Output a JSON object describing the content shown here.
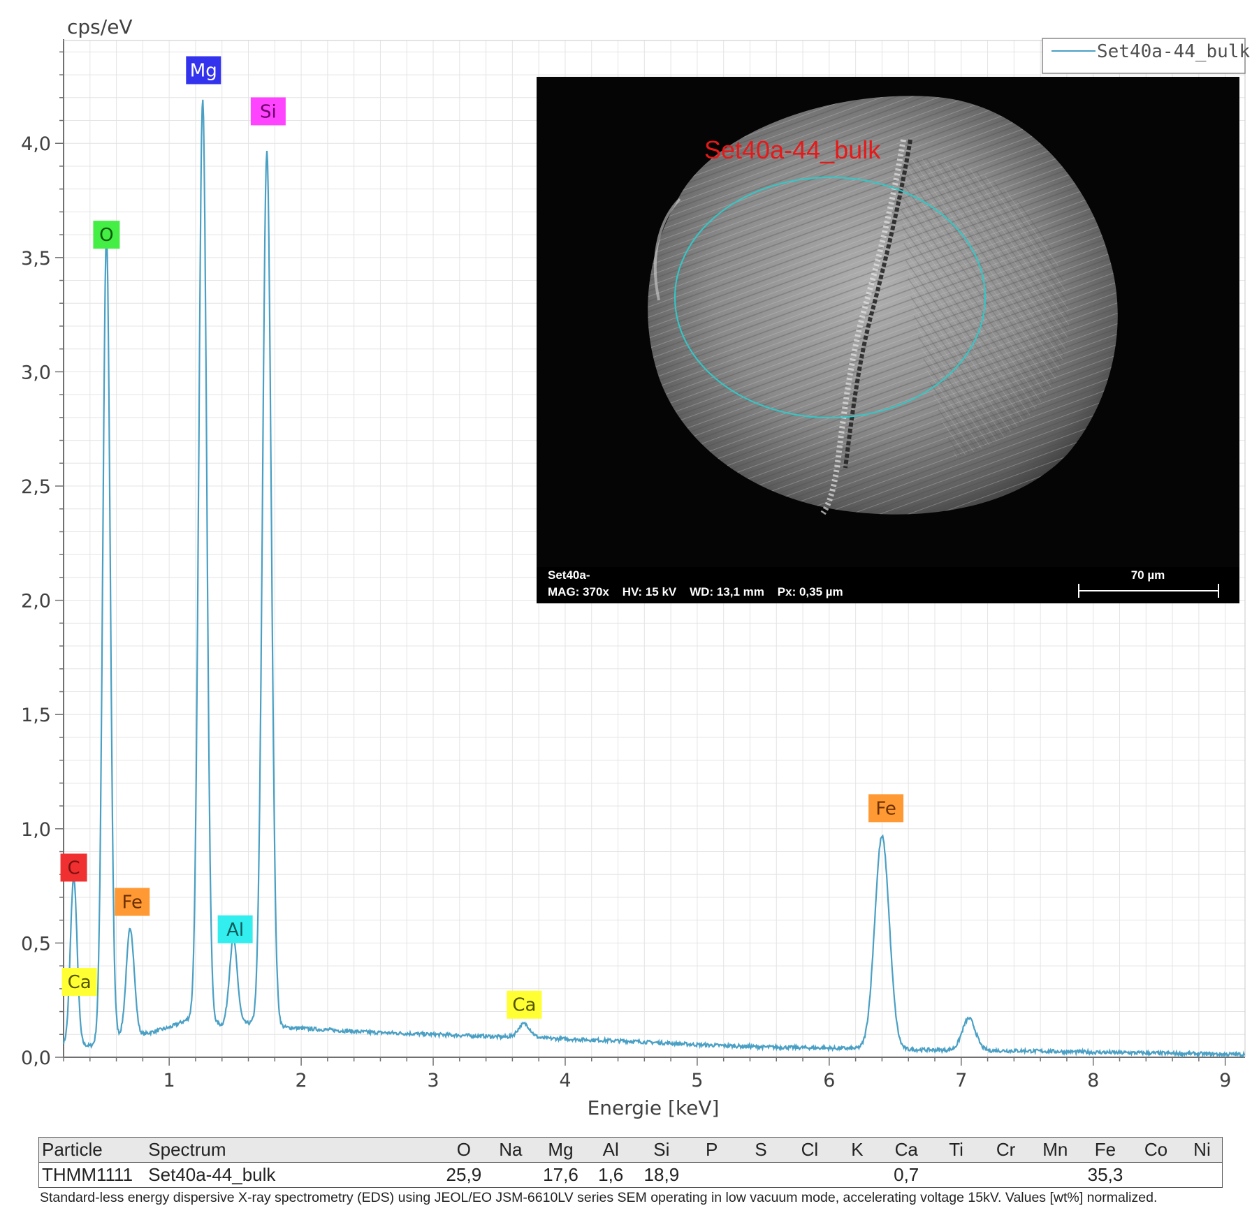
{
  "chart_data": {
    "type": "line",
    "xlabel": "Energie [keV]",
    "ylabel": "cps/eV",
    "xlim": [
      0.2,
      9.15
    ],
    "ylim": [
      0,
      4.45
    ],
    "x_ticks": [
      "1",
      "2",
      "3",
      "4",
      "5",
      "6",
      "7",
      "8",
      "9"
    ],
    "y_ticks": [
      "0,0",
      "0,5",
      "1,0",
      "1,5",
      "2,0",
      "2,5",
      "3,0",
      "3,5",
      "4,0"
    ],
    "grid": true,
    "legend": "top-right",
    "series": [
      {
        "name": "Set40a-44_bulk",
        "color": "#4aa0c4",
        "peaks": [
          {
            "x": 0.277,
            "y": 0.73,
            "w": 0.025
          },
          {
            "x": 0.525,
            "y": 3.52,
            "w": 0.028
          },
          {
            "x": 0.705,
            "y": 0.47,
            "w": 0.03
          },
          {
            "x": 1.254,
            "y": 4.03,
            "w": 0.03
          },
          {
            "x": 1.486,
            "y": 0.37,
            "w": 0.03
          },
          {
            "x": 1.74,
            "y": 3.82,
            "w": 0.033
          },
          {
            "x": 3.69,
            "y": 0.06,
            "w": 0.045
          },
          {
            "x": 6.4,
            "y": 0.93,
            "w": 0.055
          },
          {
            "x": 7.058,
            "y": 0.14,
            "w": 0.05
          }
        ],
        "background": [
          [
            0.2,
            0.06
          ],
          [
            0.3,
            0.06
          ],
          [
            0.4,
            0.05
          ],
          [
            0.6,
            0.09
          ],
          [
            0.8,
            0.1
          ],
          [
            1.0,
            0.13
          ],
          [
            1.2,
            0.18
          ],
          [
            1.4,
            0.14
          ],
          [
            1.6,
            0.15
          ],
          [
            1.9,
            0.13
          ],
          [
            2.5,
            0.11
          ],
          [
            3.0,
            0.1
          ],
          [
            3.5,
            0.09
          ],
          [
            4.0,
            0.08
          ],
          [
            4.5,
            0.07
          ],
          [
            5.0,
            0.055
          ],
          [
            5.5,
            0.045
          ],
          [
            6.0,
            0.04
          ],
          [
            6.5,
            0.035
          ],
          [
            7.0,
            0.03
          ],
          [
            7.5,
            0.028
          ],
          [
            8.0,
            0.022
          ],
          [
            8.5,
            0.018
          ],
          [
            9.15,
            0.012
          ]
        ]
      }
    ],
    "annotations": [
      {
        "text": "C",
        "x": 0.277,
        "y": 0.83,
        "color": "#f03030",
        "text_color": "#7a1010"
      },
      {
        "text": "Ca",
        "x": 0.32,
        "y": 0.33,
        "color": "#ffff33",
        "text_color": "#555500"
      },
      {
        "text": "O",
        "x": 0.525,
        "y": 3.6,
        "color": "#44ee44",
        "text_color": "#0a5a0a"
      },
      {
        "text": "Fe",
        "x": 0.72,
        "y": 0.68,
        "color": "#ff9933",
        "text_color": "#6a3000"
      },
      {
        "text": "Mg",
        "x": 1.26,
        "y": 4.32,
        "color": "#3333ee",
        "text_color": "#ffffff"
      },
      {
        "text": "Al",
        "x": 1.5,
        "y": 0.56,
        "color": "#33eeee",
        "text_color": "#0a5a5a"
      },
      {
        "text": "Si",
        "x": 1.75,
        "y": 4.14,
        "color": "#ff44ff",
        "text_color": "#6a006a"
      },
      {
        "text": "Ca",
        "x": 3.69,
        "y": 0.23,
        "color": "#ffff33",
        "text_color": "#555500"
      },
      {
        "text": "Fe",
        "x": 6.43,
        "y": 1.09,
        "color": "#ff9933",
        "text_color": "#6a3000"
      }
    ]
  },
  "sem": {
    "region_label": "Set40a-44_bulk",
    "sample": "Set40a-",
    "params": "MAG: 370x    HV: 15 kV    WD: 13,1 mm    Px: 0,35 µm",
    "scale_label": "70 µm"
  },
  "table": {
    "headers": [
      "Particle",
      "Spectrum",
      "O",
      "Na",
      "Mg",
      "Al",
      "Si",
      "P",
      "S",
      "Cl",
      "K",
      "Ca",
      "Ti",
      "Cr",
      "Mn",
      "Fe",
      "Co",
      "Ni"
    ],
    "rows": [
      [
        "THMM1111",
        "Set40a-44_bulk",
        "25,9",
        "",
        "17,6",
        "1,6",
        "18,9",
        "",
        "",
        "",
        "",
        "0,7",
        "",
        "",
        "",
        "35,3",
        "",
        ""
      ]
    ]
  },
  "footnote": "Standard-less energy dispersive X-ray spectrometry (EDS) using JEOL/EO JSM-6610LV series SEM operating in low vacuum mode, accelerating voltage 15kV. Values [wt%] normalized."
}
